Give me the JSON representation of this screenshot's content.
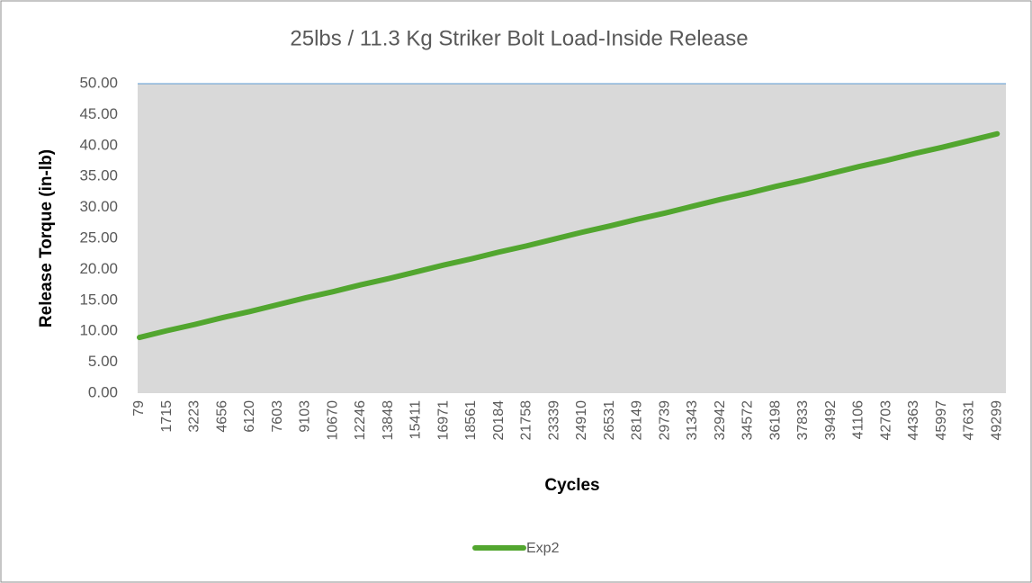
{
  "chart_data": {
    "type": "line",
    "title": "25lbs / 11.3 Kg Striker Bolt Load-Inside Release",
    "x_label": "Cycles",
    "y_label": "Release Torque (in-lb)",
    "categories": [
      "79",
      "1715",
      "3223",
      "4656",
      "6120",
      "7603",
      "9103",
      "10670",
      "12246",
      "13848",
      "15411",
      "16971",
      "18561",
      "20184",
      "21758",
      "23339",
      "24910",
      "26531",
      "28149",
      "29739",
      "31343",
      "32942",
      "34572",
      "36198",
      "37833",
      "39492",
      "41106",
      "42703",
      "44363",
      "45997",
      "47631",
      "49299"
    ],
    "series": [
      {
        "name": "Exp2",
        "color": "#52a62f",
        "values": [
          9.0,
          10.1,
          11.1,
          12.2,
          13.2,
          14.3,
          15.4,
          16.4,
          17.5,
          18.5,
          19.6,
          20.7,
          21.7,
          22.8,
          23.8,
          24.9,
          26.0,
          27.0,
          28.1,
          29.1,
          30.2,
          31.3,
          32.3,
          33.4,
          34.4,
          35.5,
          36.6,
          37.6,
          38.7,
          39.7,
          40.8,
          41.9
        ]
      }
    ],
    "ylim": [
      0,
      50
    ],
    "yticks": [
      {
        "value": 0,
        "label": "0.00"
      },
      {
        "value": 5,
        "label": "5.00"
      },
      {
        "value": 10,
        "label": "10.00"
      },
      {
        "value": 15,
        "label": "15.00"
      },
      {
        "value": 20,
        "label": "20.00"
      },
      {
        "value": 25,
        "label": "25.00"
      },
      {
        "value": 30,
        "label": "30.00"
      },
      {
        "value": 35,
        "label": "35.00"
      },
      {
        "value": 40,
        "label": "40.00"
      },
      {
        "value": 45,
        "label": "45.00"
      },
      {
        "value": 50,
        "label": "50.00"
      }
    ],
    "legend": "bottom"
  }
}
